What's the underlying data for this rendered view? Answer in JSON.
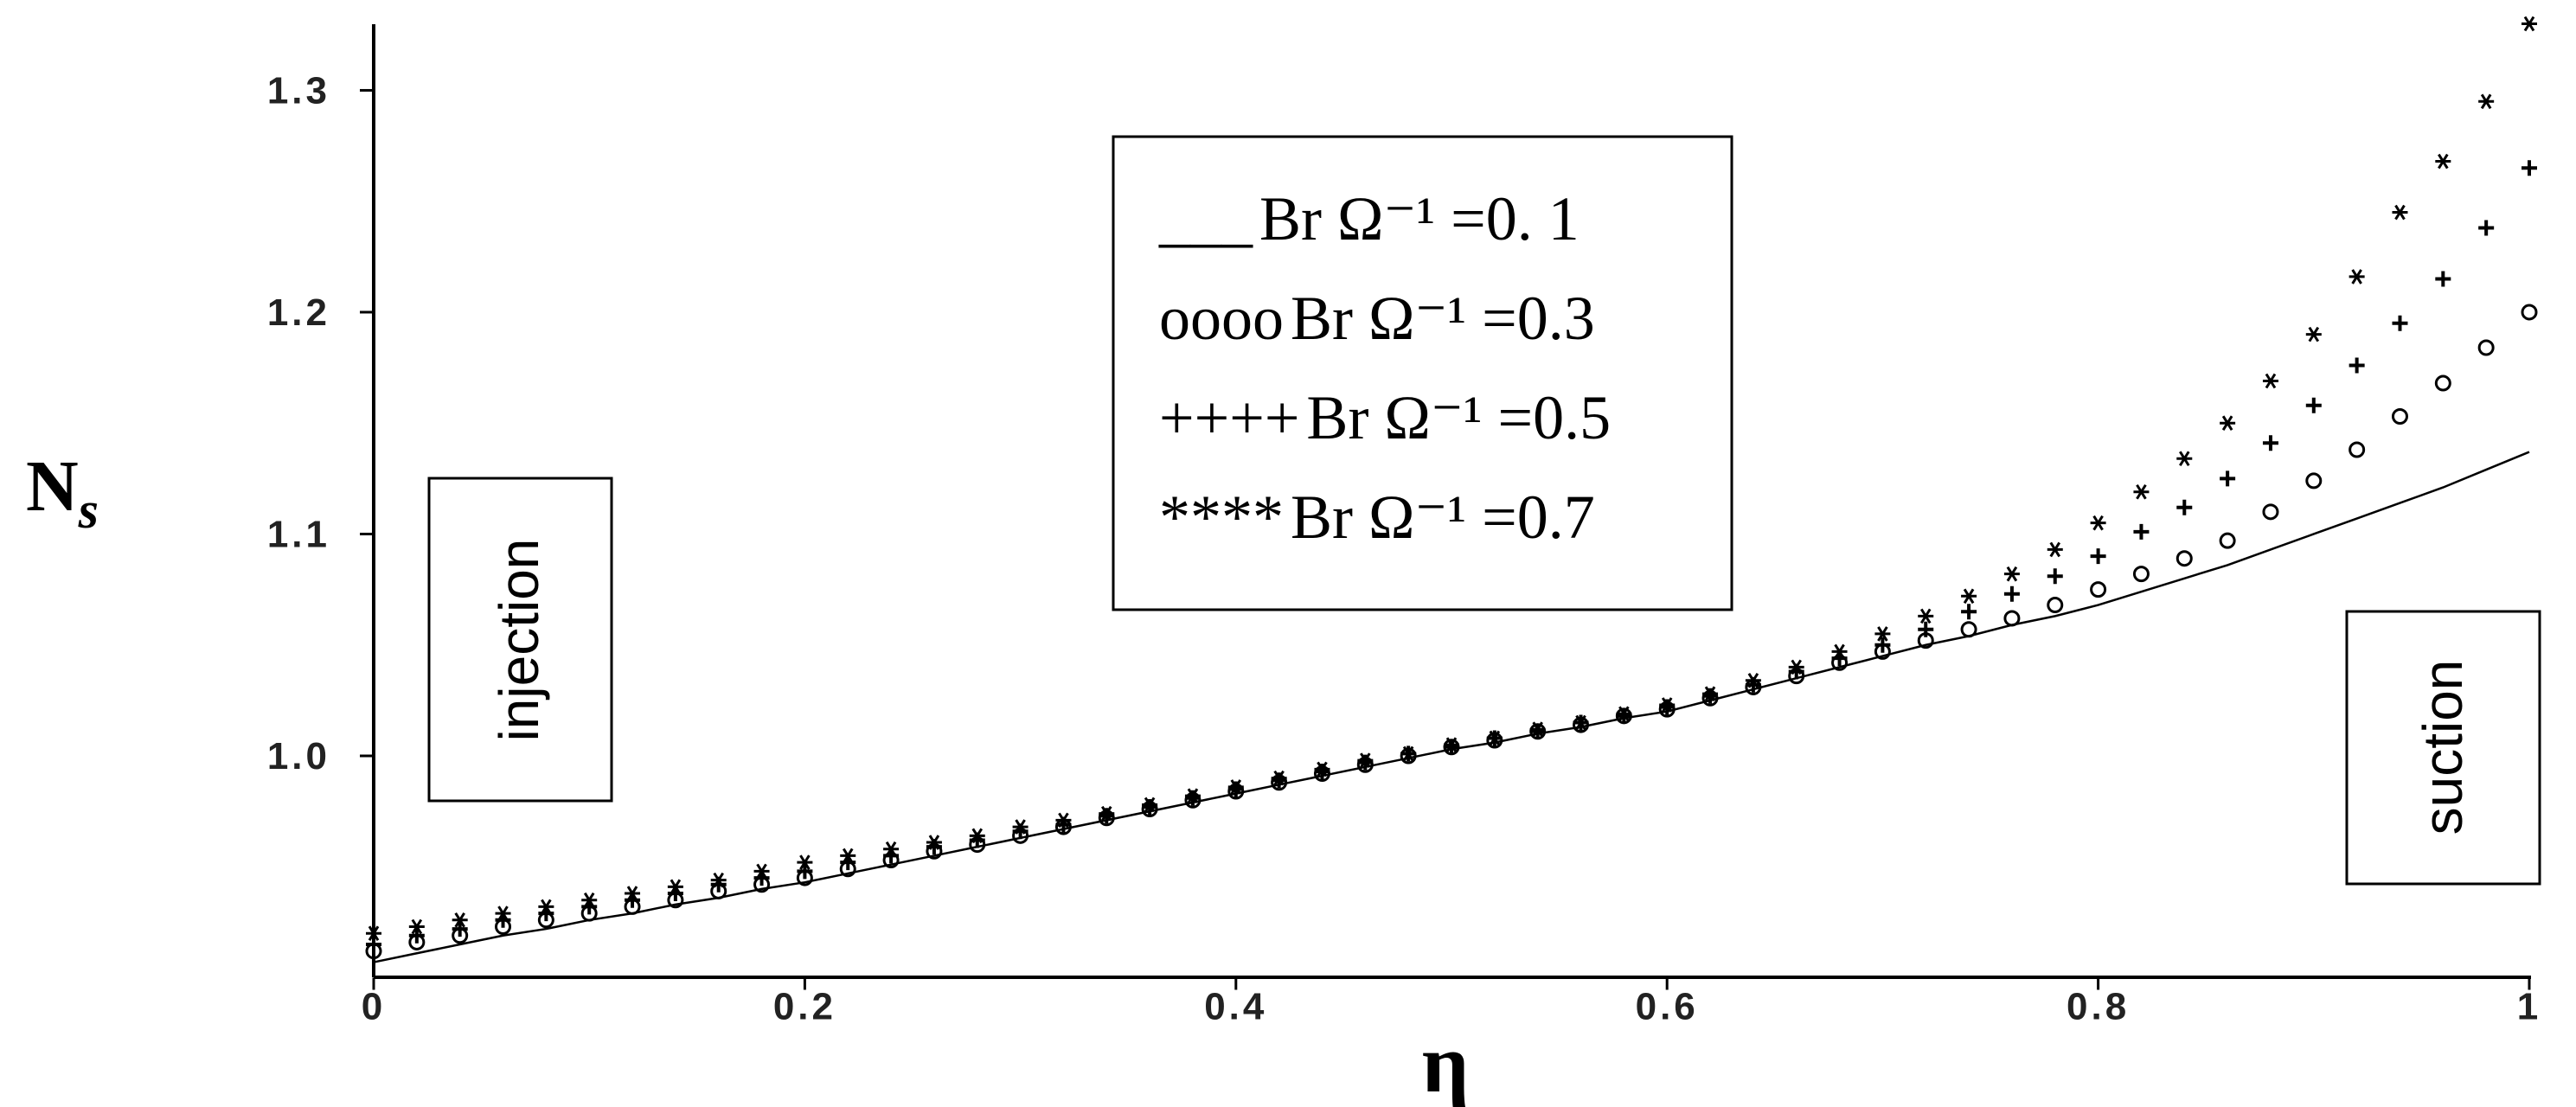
{
  "chart_data": {
    "type": "line",
    "xlabel": "η",
    "ylabel": "N",
    "ylabel_subscript": "s",
    "x": [
      0,
      0.02,
      0.04,
      0.06,
      0.08,
      0.1,
      0.12,
      0.14,
      0.16,
      0.18,
      0.2,
      0.22,
      0.24,
      0.26,
      0.28,
      0.3,
      0.32,
      0.34,
      0.36,
      0.38,
      0.4,
      0.42,
      0.44,
      0.46,
      0.48,
      0.5,
      0.52,
      0.54,
      0.56,
      0.58,
      0.6,
      0.62,
      0.64,
      0.66,
      0.68,
      0.7,
      0.72,
      0.74,
      0.76,
      0.78,
      0.8,
      0.82,
      0.84,
      0.86,
      0.88,
      0.9,
      0.92,
      0.94,
      0.96,
      0.98,
      1
    ],
    "series": [
      {
        "name": "Br Ω⁻¹ =0. 1",
        "symbol": "___",
        "color": "#000000",
        "values": [
          0.907,
          0.911,
          0.915,
          0.919,
          0.922,
          0.926,
          0.929,
          0.933,
          0.936,
          0.94,
          0.943,
          0.947,
          0.951,
          0.955,
          0.959,
          0.963,
          0.967,
          0.971,
          0.975,
          0.979,
          0.983,
          0.987,
          0.991,
          0.995,
          0.999,
          1.003,
          1.006,
          1.01,
          1.013,
          1.017,
          1.02,
          1.025,
          1.03,
          1.035,
          1.04,
          1.045,
          1.05,
          1.054,
          1.059,
          1.063,
          1.068,
          1.074,
          1.08,
          1.086,
          1.093,
          1.1,
          1.107,
          1.114,
          1.121,
          1.129,
          1.137
        ]
      },
      {
        "name": "Br Ω⁻¹ =0.3",
        "symbol": "oooo",
        "color": "#000000",
        "values": [
          0.912,
          0.916,
          0.919,
          0.923,
          0.926,
          0.929,
          0.932,
          0.935,
          0.939,
          0.942,
          0.945,
          0.949,
          0.953,
          0.957,
          0.96,
          0.964,
          0.968,
          0.972,
          0.976,
          0.98,
          0.984,
          0.988,
          0.992,
          0.996,
          1.0,
          1.004,
          1.007,
          1.011,
          1.014,
          1.018,
          1.021,
          1.026,
          1.031,
          1.036,
          1.042,
          1.047,
          1.052,
          1.057,
          1.062,
          1.068,
          1.075,
          1.082,
          1.089,
          1.097,
          1.11,
          1.124,
          1.138,
          1.153,
          1.168,
          1.184,
          1.2
        ]
      },
      {
        "name": "Br Ω⁻¹ =0.5",
        "symbol": "++++",
        "color": "#000000",
        "values": [
          0.915,
          0.919,
          0.922,
          0.926,
          0.929,
          0.932,
          0.935,
          0.938,
          0.942,
          0.945,
          0.948,
          0.952,
          0.955,
          0.959,
          0.962,
          0.966,
          0.969,
          0.973,
          0.977,
          0.981,
          0.985,
          0.989,
          0.993,
          0.997,
          1.001,
          1.004,
          1.008,
          1.011,
          1.015,
          1.018,
          1.022,
          1.027,
          1.032,
          1.038,
          1.044,
          1.05,
          1.057,
          1.065,
          1.073,
          1.081,
          1.09,
          1.101,
          1.112,
          1.125,
          1.141,
          1.158,
          1.176,
          1.195,
          1.215,
          1.238,
          1.265
        ]
      },
      {
        "name": "Br Ω⁻¹ =0.7",
        "symbol": "****",
        "color": "#000000",
        "values": [
          0.92,
          0.923,
          0.926,
          0.929,
          0.932,
          0.935,
          0.938,
          0.941,
          0.944,
          0.948,
          0.952,
          0.955,
          0.958,
          0.961,
          0.964,
          0.968,
          0.971,
          0.974,
          0.978,
          0.982,
          0.986,
          0.99,
          0.994,
          0.998,
          1.001,
          1.005,
          1.008,
          1.012,
          1.015,
          1.019,
          1.023,
          1.028,
          1.034,
          1.04,
          1.047,
          1.055,
          1.063,
          1.072,
          1.082,
          1.093,
          1.105,
          1.119,
          1.134,
          1.15,
          1.169,
          1.19,
          1.216,
          1.245,
          1.268,
          1.295,
          1.33
        ]
      }
    ],
    "xlim": [
      0,
      1
    ],
    "xticks": [
      0,
      0.2,
      0.4,
      0.6,
      0.8,
      1
    ],
    "ylim": [
      0.9,
      1.33
    ],
    "yticks": [
      {
        "value": 1,
        "label": "1.0"
      },
      1.1,
      1.2,
      1.3
    ],
    "annotations": [
      "injection",
      "suction"
    ]
  }
}
